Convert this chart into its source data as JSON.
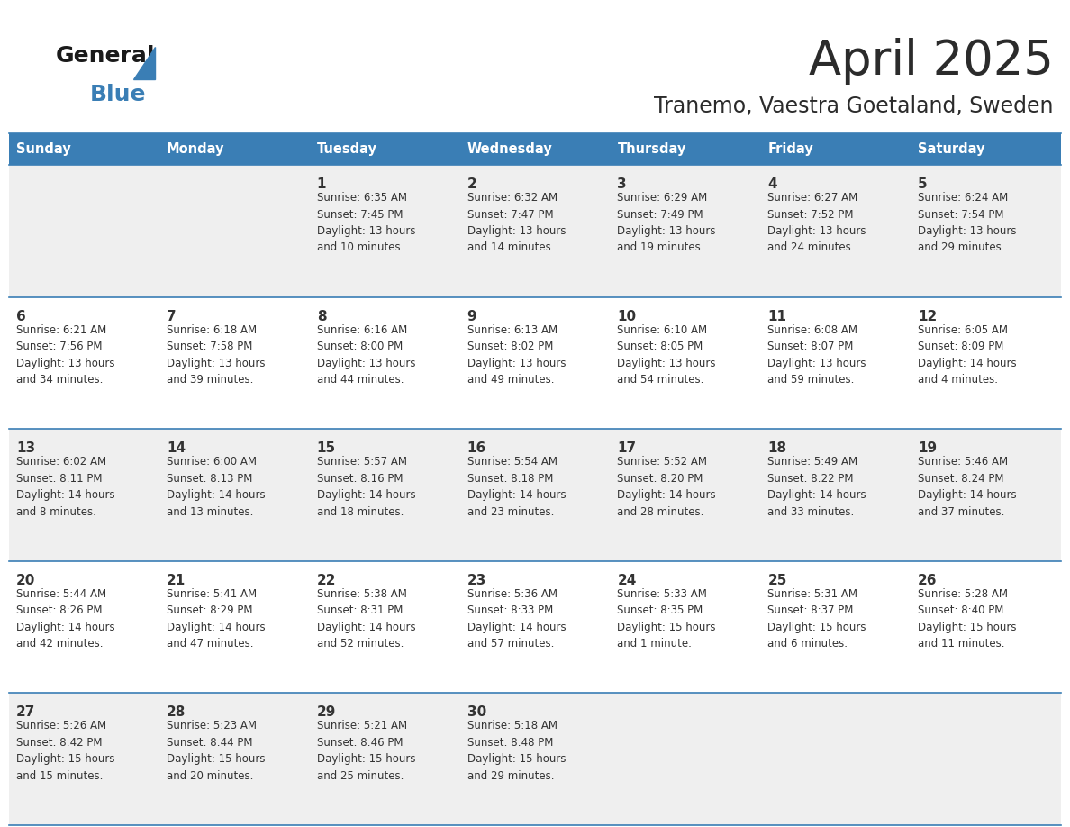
{
  "title": "April 2025",
  "subtitle": "Tranemo, Vaestra Goetaland, Sweden",
  "days_of_week": [
    "Sunday",
    "Monday",
    "Tuesday",
    "Wednesday",
    "Thursday",
    "Friday",
    "Saturday"
  ],
  "header_bg": "#3A7EB5",
  "header_text": "#FFFFFF",
  "row_bg_odd": "#EFEFEF",
  "row_bg_even": "#FFFFFF",
  "cell_text_color": "#333333",
  "day_number_color": "#333333",
  "grid_line_color": "#3A7EB5",
  "title_color": "#2B2B2B",
  "subtitle_color": "#2B2B2B",
  "logo_general_color": "#1A1A1A",
  "logo_blue_color": "#3A7EB5",
  "logo_triangle_color": "#3A7EB5",
  "calendar_data": [
    [
      {
        "day": null,
        "info": null
      },
      {
        "day": null,
        "info": null
      },
      {
        "day": 1,
        "info": "Sunrise: 6:35 AM\nSunset: 7:45 PM\nDaylight: 13 hours\nand 10 minutes."
      },
      {
        "day": 2,
        "info": "Sunrise: 6:32 AM\nSunset: 7:47 PM\nDaylight: 13 hours\nand 14 minutes."
      },
      {
        "day": 3,
        "info": "Sunrise: 6:29 AM\nSunset: 7:49 PM\nDaylight: 13 hours\nand 19 minutes."
      },
      {
        "day": 4,
        "info": "Sunrise: 6:27 AM\nSunset: 7:52 PM\nDaylight: 13 hours\nand 24 minutes."
      },
      {
        "day": 5,
        "info": "Sunrise: 6:24 AM\nSunset: 7:54 PM\nDaylight: 13 hours\nand 29 minutes."
      }
    ],
    [
      {
        "day": 6,
        "info": "Sunrise: 6:21 AM\nSunset: 7:56 PM\nDaylight: 13 hours\nand 34 minutes."
      },
      {
        "day": 7,
        "info": "Sunrise: 6:18 AM\nSunset: 7:58 PM\nDaylight: 13 hours\nand 39 minutes."
      },
      {
        "day": 8,
        "info": "Sunrise: 6:16 AM\nSunset: 8:00 PM\nDaylight: 13 hours\nand 44 minutes."
      },
      {
        "day": 9,
        "info": "Sunrise: 6:13 AM\nSunset: 8:02 PM\nDaylight: 13 hours\nand 49 minutes."
      },
      {
        "day": 10,
        "info": "Sunrise: 6:10 AM\nSunset: 8:05 PM\nDaylight: 13 hours\nand 54 minutes."
      },
      {
        "day": 11,
        "info": "Sunrise: 6:08 AM\nSunset: 8:07 PM\nDaylight: 13 hours\nand 59 minutes."
      },
      {
        "day": 12,
        "info": "Sunrise: 6:05 AM\nSunset: 8:09 PM\nDaylight: 14 hours\nand 4 minutes."
      }
    ],
    [
      {
        "day": 13,
        "info": "Sunrise: 6:02 AM\nSunset: 8:11 PM\nDaylight: 14 hours\nand 8 minutes."
      },
      {
        "day": 14,
        "info": "Sunrise: 6:00 AM\nSunset: 8:13 PM\nDaylight: 14 hours\nand 13 minutes."
      },
      {
        "day": 15,
        "info": "Sunrise: 5:57 AM\nSunset: 8:16 PM\nDaylight: 14 hours\nand 18 minutes."
      },
      {
        "day": 16,
        "info": "Sunrise: 5:54 AM\nSunset: 8:18 PM\nDaylight: 14 hours\nand 23 minutes."
      },
      {
        "day": 17,
        "info": "Sunrise: 5:52 AM\nSunset: 8:20 PM\nDaylight: 14 hours\nand 28 minutes."
      },
      {
        "day": 18,
        "info": "Sunrise: 5:49 AM\nSunset: 8:22 PM\nDaylight: 14 hours\nand 33 minutes."
      },
      {
        "day": 19,
        "info": "Sunrise: 5:46 AM\nSunset: 8:24 PM\nDaylight: 14 hours\nand 37 minutes."
      }
    ],
    [
      {
        "day": 20,
        "info": "Sunrise: 5:44 AM\nSunset: 8:26 PM\nDaylight: 14 hours\nand 42 minutes."
      },
      {
        "day": 21,
        "info": "Sunrise: 5:41 AM\nSunset: 8:29 PM\nDaylight: 14 hours\nand 47 minutes."
      },
      {
        "day": 22,
        "info": "Sunrise: 5:38 AM\nSunset: 8:31 PM\nDaylight: 14 hours\nand 52 minutes."
      },
      {
        "day": 23,
        "info": "Sunrise: 5:36 AM\nSunset: 8:33 PM\nDaylight: 14 hours\nand 57 minutes."
      },
      {
        "day": 24,
        "info": "Sunrise: 5:33 AM\nSunset: 8:35 PM\nDaylight: 15 hours\nand 1 minute."
      },
      {
        "day": 25,
        "info": "Sunrise: 5:31 AM\nSunset: 8:37 PM\nDaylight: 15 hours\nand 6 minutes."
      },
      {
        "day": 26,
        "info": "Sunrise: 5:28 AM\nSunset: 8:40 PM\nDaylight: 15 hours\nand 11 minutes."
      }
    ],
    [
      {
        "day": 27,
        "info": "Sunrise: 5:26 AM\nSunset: 8:42 PM\nDaylight: 15 hours\nand 15 minutes."
      },
      {
        "day": 28,
        "info": "Sunrise: 5:23 AM\nSunset: 8:44 PM\nDaylight: 15 hours\nand 20 minutes."
      },
      {
        "day": 29,
        "info": "Sunrise: 5:21 AM\nSunset: 8:46 PM\nDaylight: 15 hours\nand 25 minutes."
      },
      {
        "day": 30,
        "info": "Sunrise: 5:18 AM\nSunset: 8:48 PM\nDaylight: 15 hours\nand 29 minutes."
      },
      {
        "day": null,
        "info": null
      },
      {
        "day": null,
        "info": null
      },
      {
        "day": null,
        "info": null
      }
    ]
  ]
}
